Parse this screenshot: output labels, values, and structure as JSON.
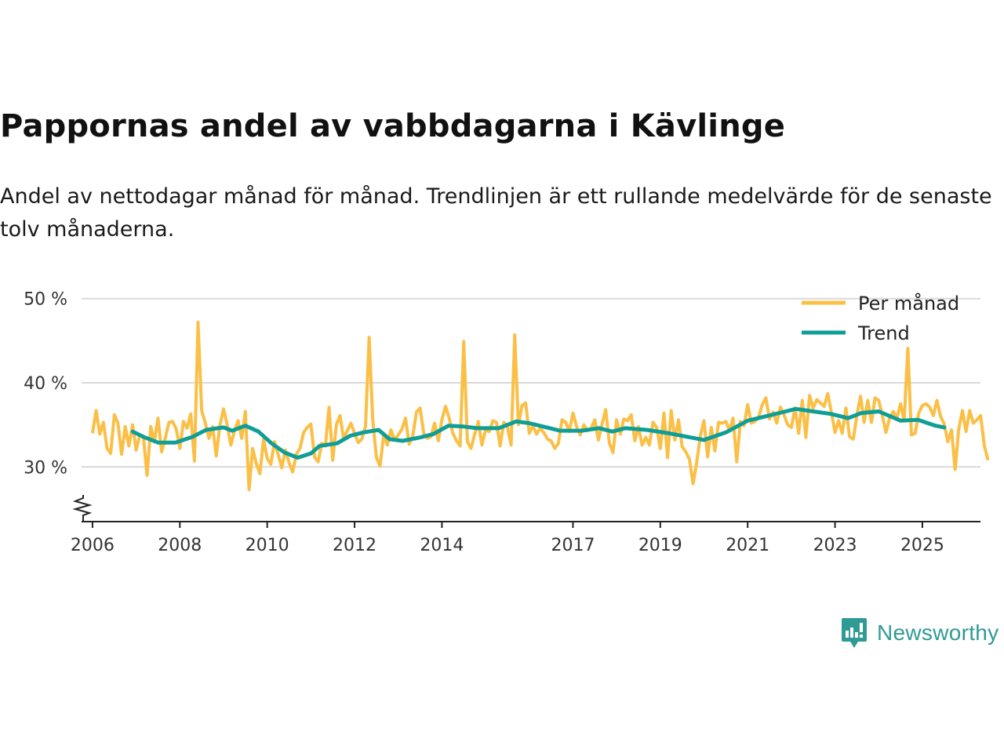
{
  "header": {
    "title": "Pappornas andel av vabbdagarna i Kävlinge",
    "subtitle": "Andel av nettodagar månad för månad. Trendlinjen är ett rullande medelvärde för de senaste tolv månaderna."
  },
  "branding": {
    "name": "Newsworthy"
  },
  "colors": {
    "monthly": "#fbbf46",
    "trend": "#0f9e95",
    "grid": "#d9d9d9",
    "axis": "#222222"
  },
  "chart_data": {
    "type": "line",
    "title": "Pappornas andel av vabbdagarna i Kävlinge",
    "xlabel": "",
    "ylabel": "",
    "xlim": [
      2005.75,
      2026.33
    ],
    "ylim": [
      23.5,
      51
    ],
    "y_ticks": [
      30,
      40,
      50
    ],
    "y_tick_labels": [
      "30 %",
      "40 %",
      "50 %"
    ],
    "x_ticks": [
      2006,
      2008,
      2010,
      2012,
      2014,
      2017,
      2019,
      2021,
      2023,
      2025
    ],
    "x_tick_labels": [
      "2006",
      "2008",
      "2010",
      "2012",
      "2014",
      "2017",
      "2019",
      "2021",
      "2023",
      "2025"
    ],
    "y_axis_break": true,
    "legend": {
      "position": "top-right",
      "entries": [
        "Per månad",
        "Trend"
      ]
    },
    "series": [
      {
        "name": "Per månad",
        "start": [
          2006,
          1
        ],
        "values": [
          34,
          36.7,
          33.9,
          35.3,
          32.2,
          31.6,
          36.2,
          35.2,
          31.5,
          34.8,
          32.5,
          35,
          32,
          33.8,
          33.5,
          29,
          34.8,
          33,
          35.8,
          31.8,
          33.4,
          35.3,
          35.4,
          34.5,
          32.2,
          35.4,
          34.6,
          36.3,
          30.7,
          47.2,
          36.7,
          35.2,
          33.4,
          34.8,
          31.3,
          34.9,
          36.9,
          35,
          32.6,
          34.3,
          35.5,
          33.4,
          36.6,
          27.3,
          32.2,
          30.4,
          29.2,
          33.3,
          31,
          30.3,
          33,
          31.5,
          29.9,
          32,
          30.5,
          29.4,
          31.5,
          32.2,
          34.1,
          34.7,
          35.1,
          31.2,
          30.6,
          32.8,
          32.5,
          37.1,
          30.8,
          35,
          36.1,
          33.3,
          34.3,
          35.2,
          34,
          32.9,
          33.3,
          34.8,
          45.4,
          35.6,
          31.1,
          30.1,
          33.8,
          32.6,
          34.4,
          33.2,
          33.8,
          34.5,
          35.8,
          32.7,
          33.7,
          36.5,
          37,
          34,
          33.4,
          33.6,
          35.2,
          33.1,
          35.6,
          37.2,
          35.8,
          34,
          33.1,
          32.5,
          44.9,
          33,
          32.2,
          33.9,
          35.4,
          32.6,
          34.4,
          34.2,
          35.5,
          35.3,
          32.5,
          35.3,
          34.8,
          32.6,
          45.7,
          35,
          37.3,
          37.6,
          34,
          34.9,
          33.9,
          34.6,
          34.1,
          33.3,
          33.1,
          32.2,
          32.8,
          35.6,
          35.3,
          34.2,
          36.4,
          34.8,
          33.8,
          35,
          34.3,
          34.6,
          35.6,
          33.2,
          35.1,
          36.8,
          32.8,
          31.7,
          35.6,
          33.9,
          35.7,
          35.5,
          36.2,
          33.1,
          34.8,
          32.6,
          33.5,
          32.6,
          35.3,
          34.7,
          32.2,
          36.4,
          31.1,
          36.7,
          33.2,
          35.6,
          32.4,
          31.8,
          30.9,
          28,
          30.5,
          33.7,
          35.5,
          31.2,
          34.7,
          31.9,
          35.3,
          35.2,
          35.4,
          34.3,
          35.8,
          30.6,
          35.4,
          34.9,
          37.4,
          35.2,
          35.4,
          35.9,
          37.4,
          38.2,
          35.7,
          36.5,
          35.2,
          37.1,
          36.2,
          35,
          34.7,
          37,
          34,
          37.9,
          33.5,
          38.5,
          37,
          38,
          37.6,
          37.2,
          38.7,
          36.5,
          34.1,
          35.5,
          34,
          37,
          33.6,
          33.3,
          36.1,
          38.4,
          35.3,
          37.9,
          35.3,
          38.2,
          37.9,
          36.1,
          34.1,
          35.8,
          36.6,
          35.8,
          37.5,
          35.5,
          44.1,
          33.8,
          34,
          36.4,
          37.3,
          37.5,
          37.1,
          36.1,
          37.9,
          36,
          35.1,
          33,
          34.4,
          29.7,
          34.5,
          36.7,
          34.2,
          36.7,
          35.2,
          35.6,
          36.1,
          32.6,
          30.8
        ]
      },
      {
        "name": "Trend",
        "points": [
          [
            2006.92,
            34.2
          ],
          [
            2007.2,
            33.5
          ],
          [
            2007.5,
            32.9
          ],
          [
            2007.9,
            32.9
          ],
          [
            2008.3,
            33.6
          ],
          [
            2008.6,
            34.4
          ],
          [
            2009,
            34.7
          ],
          [
            2009.2,
            34.3
          ],
          [
            2009.5,
            34.9
          ],
          [
            2009.8,
            34.2
          ],
          [
            2010.1,
            32.8
          ],
          [
            2010.4,
            31.7
          ],
          [
            2010.7,
            31.1
          ],
          [
            2011,
            31.6
          ],
          [
            2011.2,
            32.5
          ],
          [
            2011.6,
            32.8
          ],
          [
            2011.9,
            33.7
          ],
          [
            2012.2,
            34.1
          ],
          [
            2012.55,
            34.4
          ],
          [
            2012.8,
            33.3
          ],
          [
            2013.1,
            33.1
          ],
          [
            2013.5,
            33.5
          ],
          [
            2013.8,
            33.9
          ],
          [
            2014.15,
            34.9
          ],
          [
            2014.5,
            34.8
          ],
          [
            2014.8,
            34.6
          ],
          [
            2015.3,
            34.6
          ],
          [
            2015.7,
            35.4
          ],
          [
            2016,
            35.2
          ],
          [
            2016.4,
            34.7
          ],
          [
            2016.7,
            34.3
          ],
          [
            2017.2,
            34.3
          ],
          [
            2017.6,
            34.6
          ],
          [
            2017.9,
            34.2
          ],
          [
            2018.2,
            34.6
          ],
          [
            2018.7,
            34.4
          ],
          [
            2019.2,
            34
          ],
          [
            2019.6,
            33.6
          ],
          [
            2020,
            33.2
          ],
          [
            2020.5,
            34.1
          ],
          [
            2021,
            35.5
          ],
          [
            2021.4,
            36
          ],
          [
            2021.8,
            36.5
          ],
          [
            2022.1,
            36.9
          ],
          [
            2022.5,
            36.6
          ],
          [
            2022.9,
            36.3
          ],
          [
            2023.3,
            35.8
          ],
          [
            2023.6,
            36.4
          ],
          [
            2024,
            36.6
          ],
          [
            2024.5,
            35.5
          ],
          [
            2024.9,
            35.6
          ],
          [
            2025.3,
            34.9
          ],
          [
            2025.5,
            34.7
          ]
        ]
      }
    ]
  }
}
